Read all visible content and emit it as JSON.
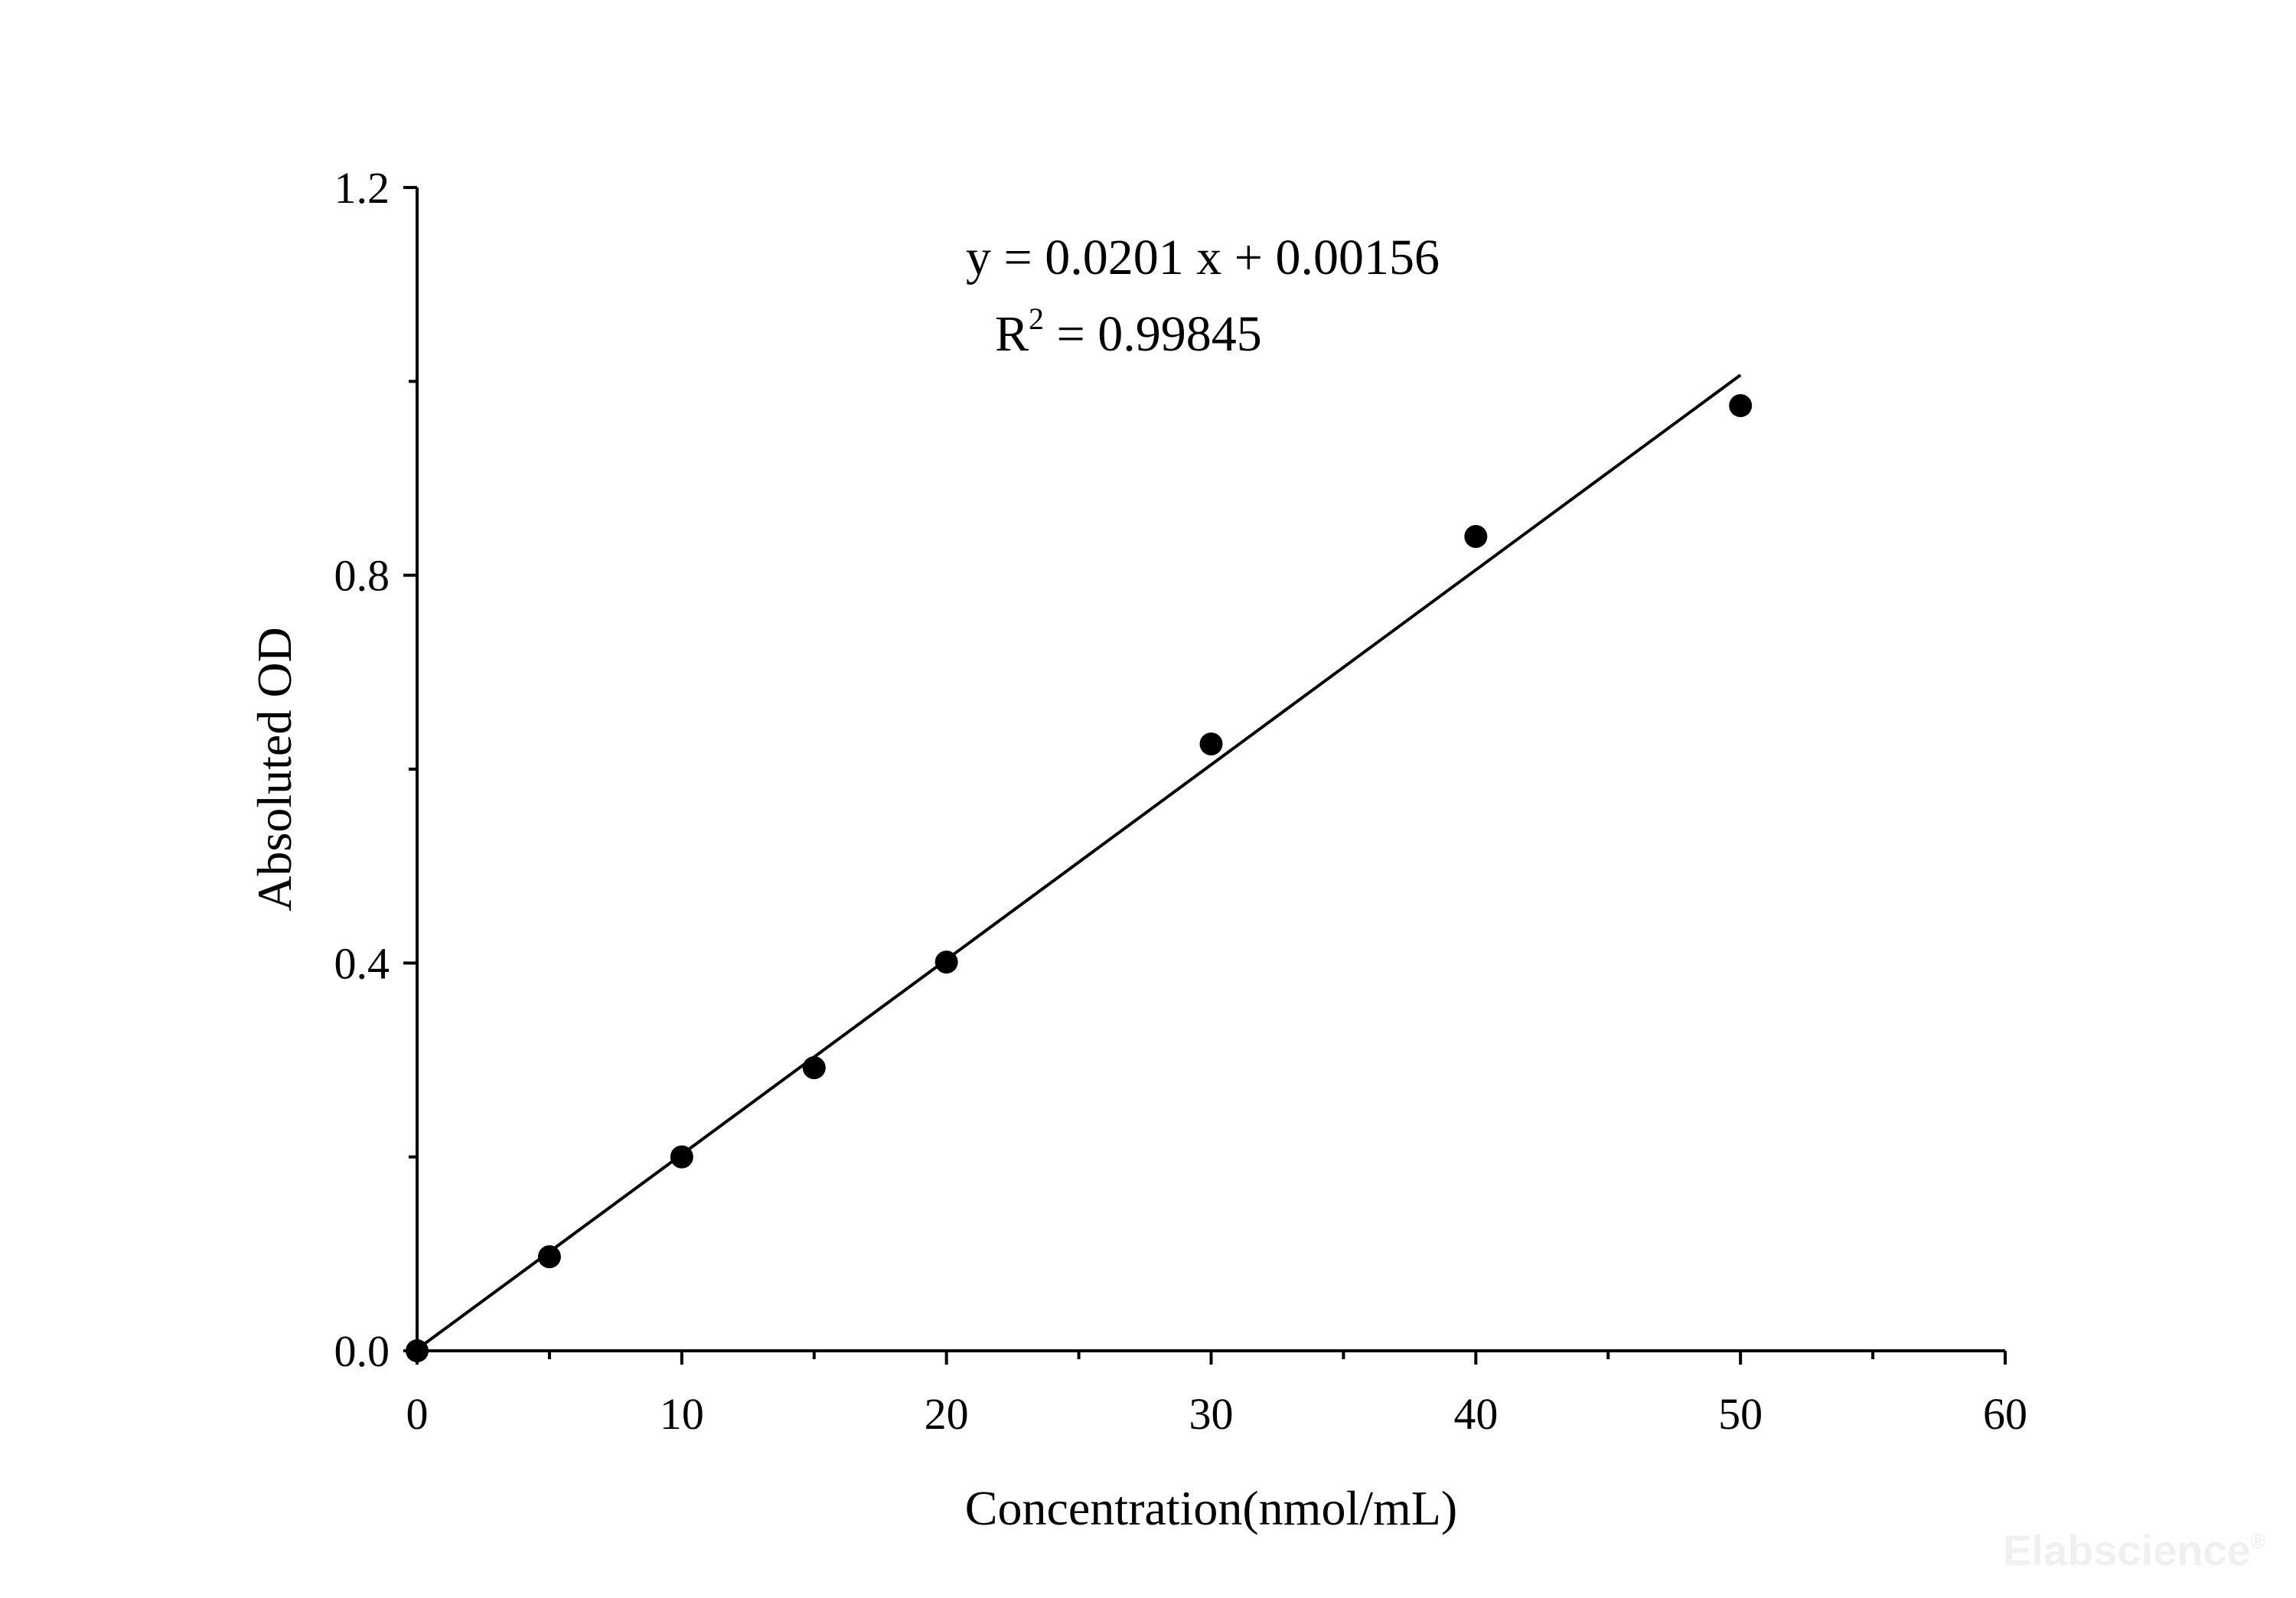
{
  "chart_data": {
    "type": "scatter",
    "title": "",
    "xlabel": "Concentration(nmol/mL)",
    "ylabel": "Absoluted OD",
    "xlim": [
      0,
      60
    ],
    "ylim": [
      0,
      1.2
    ],
    "x_ticks": [
      0,
      10,
      20,
      30,
      40,
      50,
      60
    ],
    "x_tick_labels": [
      "0",
      "10",
      "20",
      "30",
      "40",
      "50",
      "60"
    ],
    "x_minor_ticks": [
      5,
      15,
      25,
      35,
      45,
      55
    ],
    "y_ticks": [
      0,
      0.4,
      0.8,
      1.2
    ],
    "y_tick_labels": [
      "0.0",
      "0.4",
      "0.8",
      "1.2"
    ],
    "y_minor_ticks": [
      0.2,
      0.6,
      1.0
    ],
    "grid": false,
    "series": [
      {
        "x": [
          0,
          5,
          10,
          15,
          20,
          30,
          40,
          50
        ],
        "y": [
          0.0,
          0.097,
          0.2,
          0.292,
          0.401,
          0.626,
          0.84,
          0.975
        ],
        "marker": "circle",
        "color": "#000000"
      }
    ],
    "fit_line": {
      "slope": 0.0201,
      "intercept": 0.00156,
      "x_range": [
        0,
        50
      ],
      "color": "#000000"
    },
    "annotations": {
      "equation": "y = 0.0201 x + 0.00156",
      "r2_prefix": "R",
      "r2_exponent": "2",
      "r2_value": " = 0.99845"
    }
  },
  "watermark": {
    "text": "Elabscience",
    "symbol": "®"
  }
}
